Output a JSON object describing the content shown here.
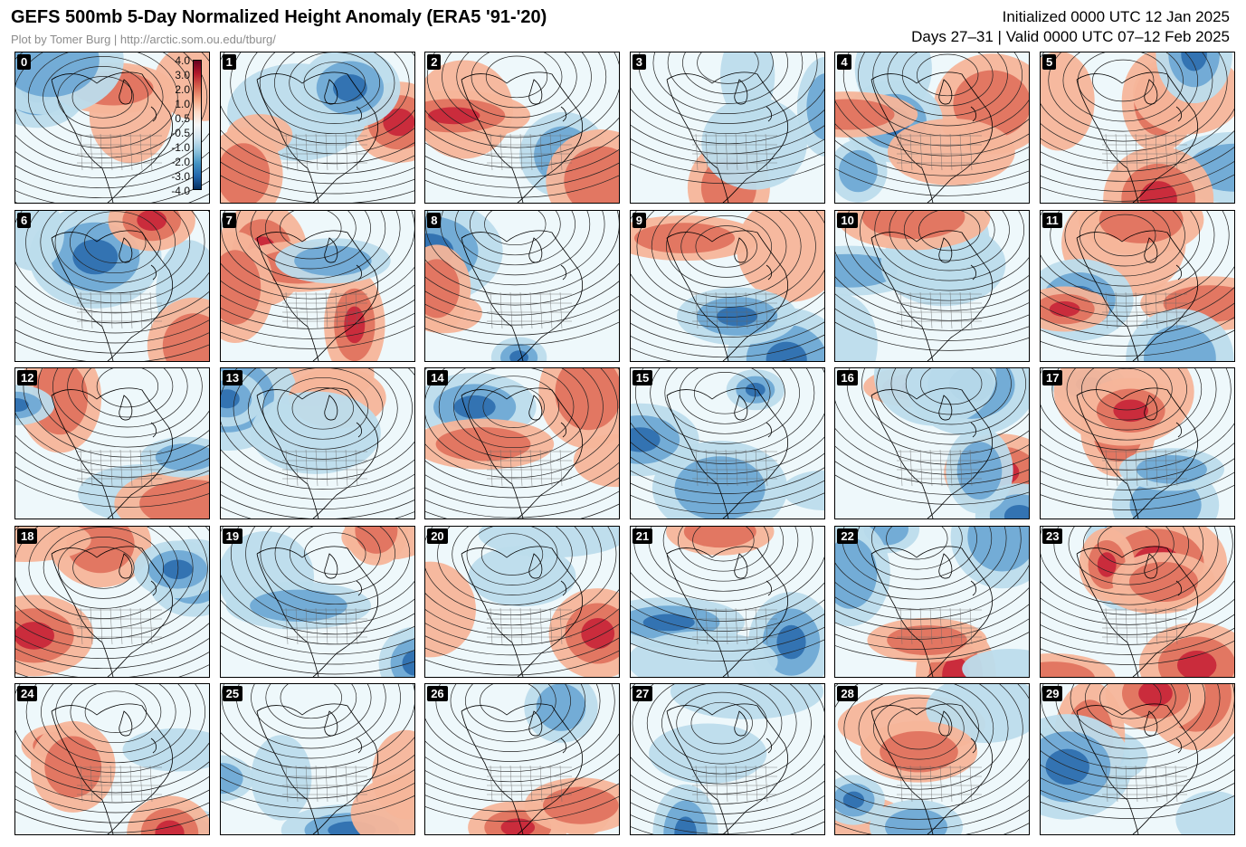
{
  "header": {
    "title": "GEFS 500mb 5-Day Normalized Height Anomaly (ERA5 '91-'20)",
    "credit": "Plot by Tomer Burg | http://arctic.som.ou.edu/tburg/",
    "initialized": "Initialized 0000 UTC 12 Jan 2025",
    "valid": "Days 27–31 | Valid 0000 UTC 07–12 Feb 2025"
  },
  "colors": {
    "pos_strong": "#c8283a",
    "pos_mid": "#e0735f",
    "pos_light": "#f6b59a",
    "neutral": "#eef8fb",
    "neg_light": "#bcdcec",
    "neg_mid": "#6fa9d5",
    "neg_strong": "#2f70b0",
    "contour": "#222222",
    "map_lines": "#000000"
  },
  "colorbar": {
    "labels": [
      "4.0",
      "3.0",
      "2.0",
      "1.0",
      "0.5",
      "-0.5",
      "-1.0",
      "-2.0",
      "-3.0",
      "-4.0"
    ]
  },
  "members": [
    "0",
    "1",
    "2",
    "3",
    "4",
    "5",
    "6",
    "7",
    "8",
    "9",
    "10",
    "11",
    "12",
    "13",
    "14",
    "15",
    "16",
    "17",
    "18",
    "19",
    "20",
    "21",
    "22",
    "23",
    "24",
    "25",
    "26",
    "27",
    "28",
    "29"
  ]
}
